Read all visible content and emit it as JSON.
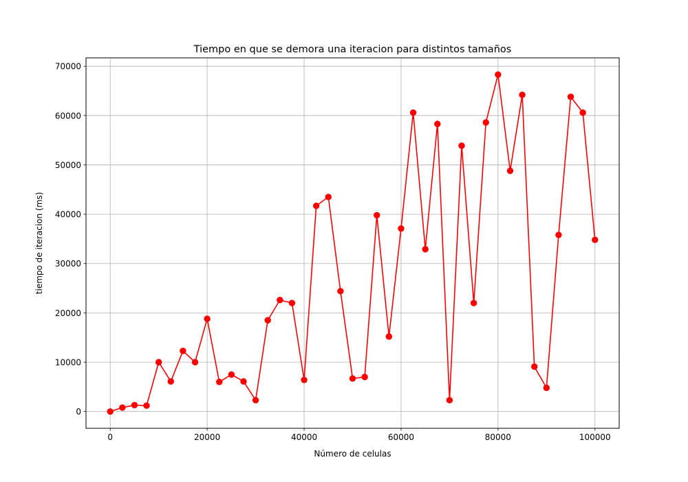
{
  "chart_data": {
    "type": "line",
    "title": "Tiempo en que se demora una iteracion para distintos tamaños",
    "xlabel": "Número de celulas",
    "ylabel": "tiempo de iteracion (ms)",
    "xlim": [
      -5000,
      105000
    ],
    "ylim": [
      -3400,
      71700
    ],
    "x_ticks": [
      0,
      20000,
      40000,
      60000,
      80000,
      100000
    ],
    "y_ticks": [
      0,
      10000,
      20000,
      30000,
      40000,
      50000,
      60000,
      70000
    ],
    "grid": true,
    "series": [
      {
        "color": "#ff0000",
        "marker": "circle",
        "x": [
          0,
          2500,
          5000,
          7500,
          10000,
          12500,
          15000,
          17500,
          20000,
          22500,
          25000,
          27500,
          30000,
          32500,
          35000,
          37500,
          40000,
          42500,
          45000,
          47500,
          50000,
          52500,
          55000,
          57500,
          60000,
          62500,
          65000,
          67500,
          70000,
          72500,
          75000,
          77500,
          80000,
          82500,
          85000,
          87500,
          90000,
          92500,
          95000,
          97500,
          100000
        ],
        "y": [
          0,
          800,
          1300,
          1200,
          10000,
          6100,
          12300,
          10000,
          18800,
          6000,
          7500,
          6100,
          2300,
          18500,
          22600,
          22000,
          6400,
          41700,
          43500,
          24400,
          6700,
          7000,
          39800,
          15200,
          37100,
          60600,
          32900,
          58300,
          2300,
          53900,
          22000,
          58600,
          68300,
          48800,
          64200,
          9100,
          4800,
          35800,
          63800,
          60600,
          34800
        ]
      }
    ]
  }
}
